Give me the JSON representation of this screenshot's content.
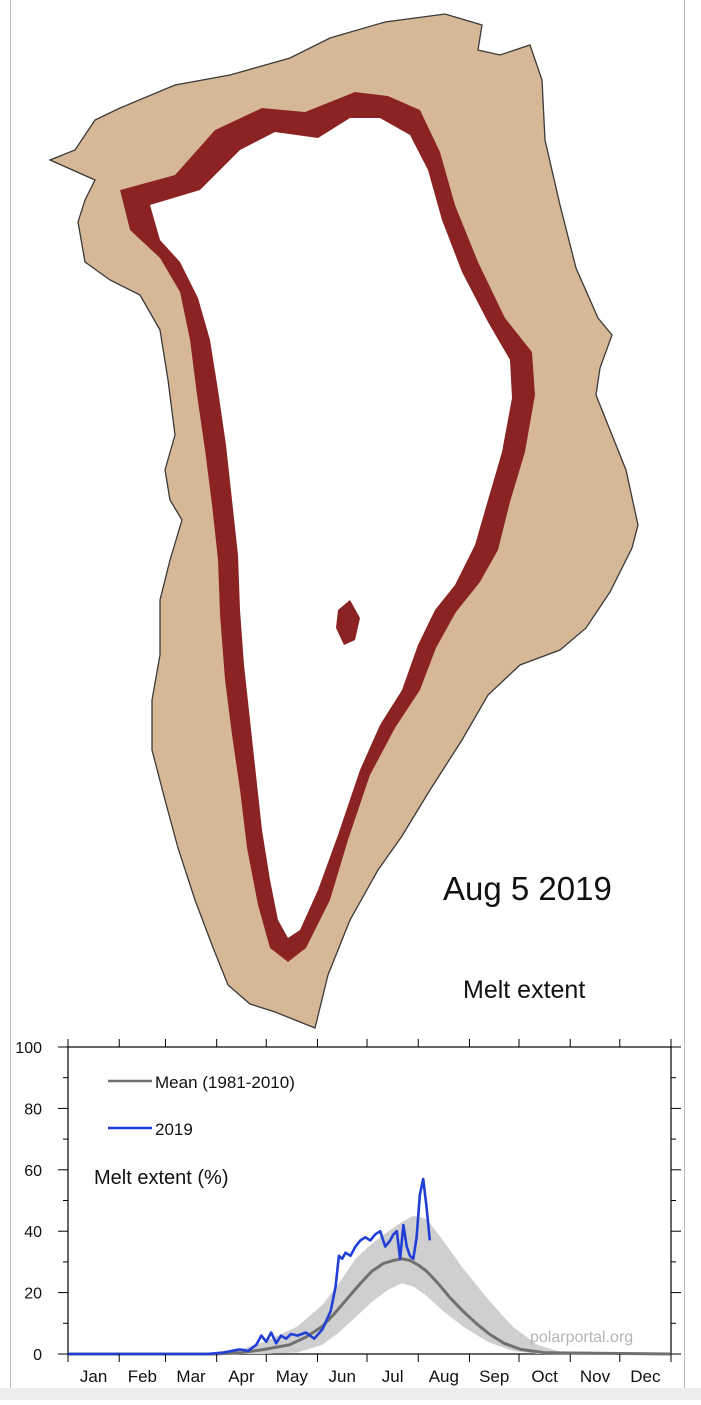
{
  "map": {
    "date_label": "Aug 5 2019",
    "subtitle": "Melt extent",
    "colors": {
      "melt": "#8b2323",
      "land": "#d6b896",
      "ice": "#ffffff",
      "coast": "#3a3a3a"
    }
  },
  "chart_data": {
    "type": "line",
    "title": "Melt extent (%)",
    "watermark": "polarportal.org",
    "x_categories": [
      "Jan",
      "Feb",
      "Mar",
      "Apr",
      "May",
      "Jun",
      "Jul",
      "Aug",
      "Sep",
      "Oct",
      "Nov",
      "Dec"
    ],
    "xlim": [
      1,
      366
    ],
    "ylim": [
      0,
      100
    ],
    "yticks": [
      "0",
      "20",
      "40",
      "60",
      "80",
      "100"
    ],
    "legend_position": "top-left",
    "series": [
      {
        "name": "Mean (1981-2010)",
        "color": "#707070",
        "x": [
          1,
          60,
          90,
          105,
          120,
          135,
          145,
          155,
          162,
          170,
          178,
          185,
          192,
          198,
          203,
          208,
          213,
          218,
          225,
          232,
          240,
          248,
          256,
          265,
          275,
          290,
          366
        ],
        "y": [
          0,
          0,
          0,
          0.4,
          1.5,
          3,
          5.5,
          9,
          13,
          18,
          23,
          27,
          29.5,
          30.5,
          31,
          30.5,
          29,
          27,
          23,
          18.5,
          14,
          10,
          6.5,
          3.5,
          1.5,
          0.4,
          0
        ]
      },
      {
        "name": "2019",
        "color": "#1f3fd6",
        "x": [
          1,
          85,
          95,
          105,
          110,
          115,
          118,
          121,
          124,
          127,
          130,
          133,
          136,
          140,
          145,
          150,
          155,
          160,
          163,
          165,
          167,
          169,
          172,
          175,
          178,
          181,
          184,
          187,
          190,
          193,
          196,
          198,
          200,
          202,
          204,
          206,
          208,
          210,
          212,
          214,
          216,
          218,
          220
        ],
        "y": [
          0,
          0,
          0.5,
          1.5,
          1,
          3,
          6,
          4,
          7,
          3.5,
          6,
          5,
          6.5,
          6,
          7,
          5,
          8,
          14,
          22,
          32,
          31,
          33,
          32,
          35,
          37,
          38,
          37,
          39,
          40,
          35,
          37,
          39,
          40,
          31,
          42,
          35,
          32,
          31,
          38,
          52,
          57,
          48,
          37
        ]
      }
    ],
    "mean_band": {
      "x": [
        100,
        120,
        140,
        155,
        165,
        175,
        185,
        195,
        203,
        210,
        218,
        228,
        240,
        255,
        270,
        285,
        300
      ],
      "low": [
        0,
        0,
        0.5,
        3,
        7,
        12,
        17,
        21,
        23,
        22,
        19,
        14,
        9,
        4,
        1,
        0,
        0
      ],
      "high": [
        0.5,
        4,
        9,
        16,
        23,
        31,
        36,
        40,
        43,
        45,
        44,
        37,
        28,
        18,
        9,
        3,
        0.5
      ]
    }
  }
}
